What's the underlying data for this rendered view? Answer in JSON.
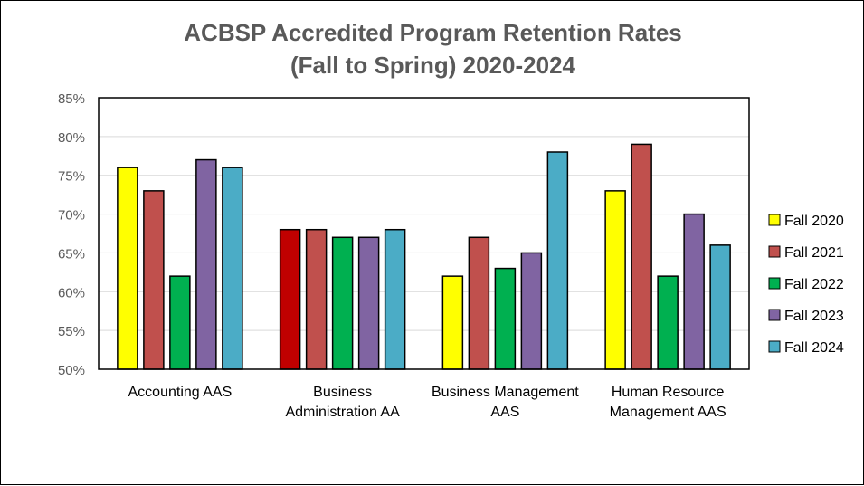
{
  "chart_data": {
    "type": "bar",
    "title_lines": [
      "ACBSP Accredited Program Retention Rates",
      "(Fall to Spring) 2020-2024"
    ],
    "xlabel": "",
    "ylabel": "",
    "ylim": [
      50,
      85
    ],
    "y_ticks": [
      50,
      55,
      60,
      65,
      70,
      75,
      80,
      85
    ],
    "y_tick_labels": [
      "50%",
      "55%",
      "60%",
      "65%",
      "70%",
      "75%",
      "80%",
      "85%"
    ],
    "grid": true,
    "legend_position": "right",
    "categories": [
      "Accounting AAS",
      "Business Administration AA",
      "Business Management AAS",
      "Human Resource Management AAS"
    ],
    "category_label_lines": [
      [
        "Accounting AAS"
      ],
      [
        "Business",
        "Administration AA"
      ],
      [
        "Business Management",
        "AAS"
      ],
      [
        "Human Resource",
        "Management AAS"
      ]
    ],
    "series": [
      {
        "name": "Fall 2020",
        "color": "#FFFF00",
        "values": [
          76,
          68,
          62,
          73
        ]
      },
      {
        "name": "Fall 2021",
        "color": "#C0504D",
        "values": [
          73,
          68,
          67,
          79
        ]
      },
      {
        "name": "Fall 2022",
        "color": "#00B050",
        "values": [
          62,
          67,
          63,
          62
        ]
      },
      {
        "name": "Fall 2023",
        "color": "#8064A2",
        "values": [
          77,
          67,
          65,
          70
        ]
      },
      {
        "name": "Fall 2024",
        "color": "#4BACC6",
        "values": [
          76,
          68,
          78,
          66
        ]
      }
    ],
    "point_colors": {
      "0-1": "#C00000"
    }
  }
}
